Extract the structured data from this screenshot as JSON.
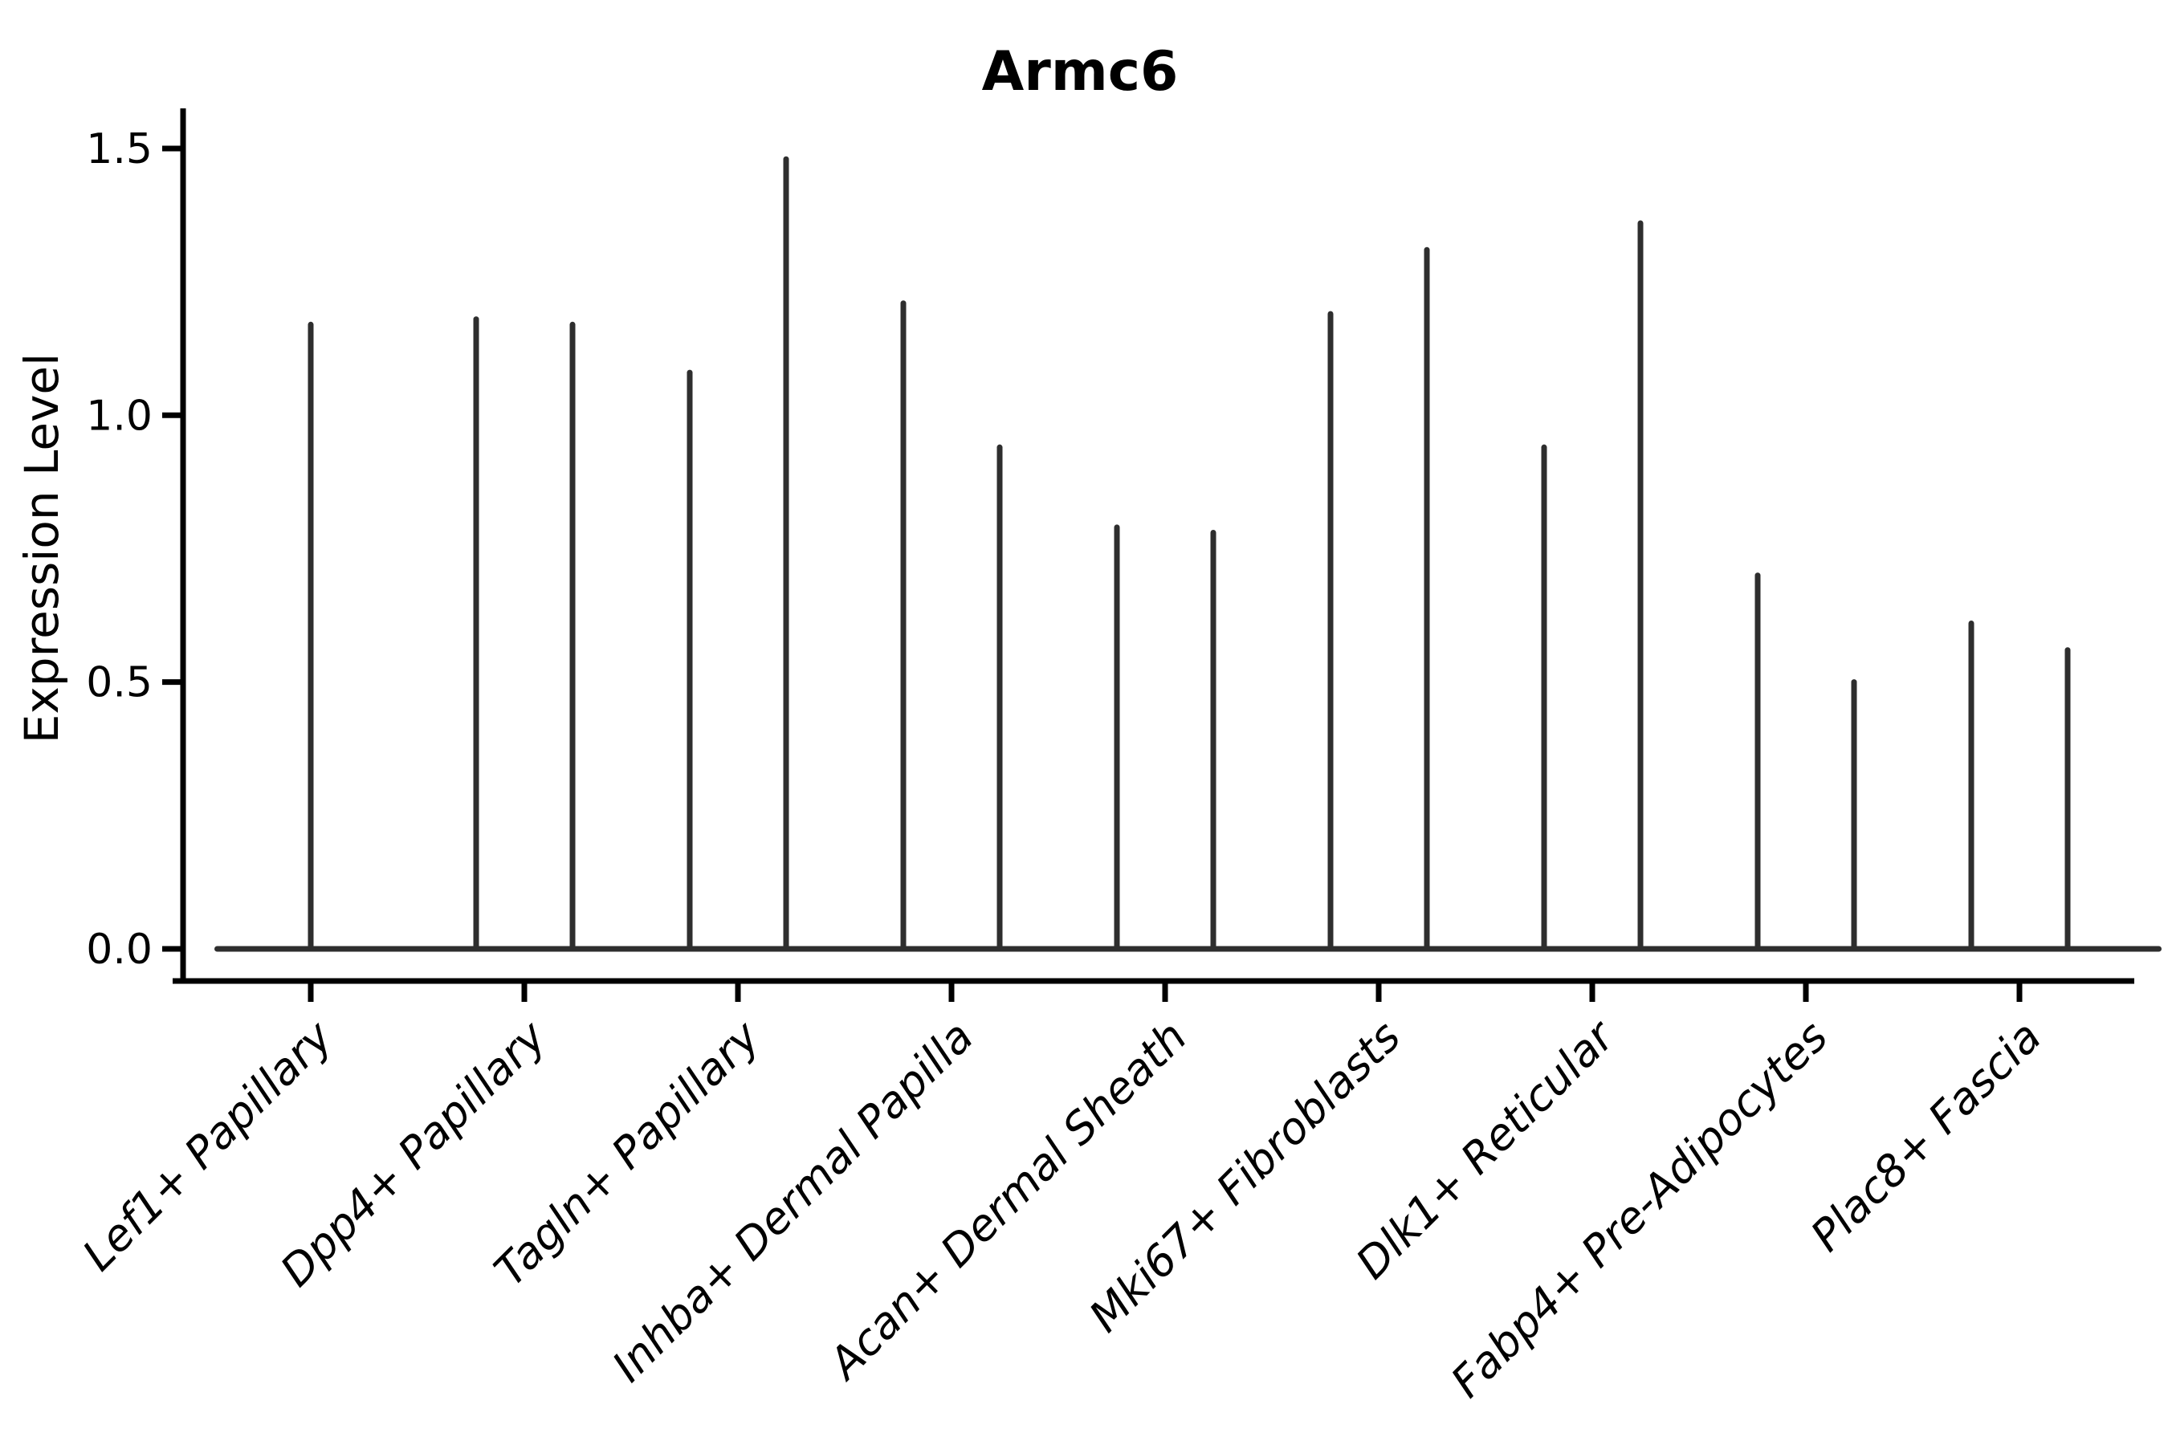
{
  "title": "Armc6",
  "ylabel": "Expression Level",
  "chart_data": {
    "type": "violin",
    "title": "Armc6",
    "xlabel": "",
    "ylabel": "Expression Level",
    "categories": [
      "Lef1+ Papillary",
      "Dpp4+ Papillary",
      "Tagln+ Papillary",
      "Inhba+ Dermal Papilla",
      "Acan+ Dermal Sheath",
      "Mki67+ Fibroblasts",
      "Dlk1+ Reticular",
      "Fabp4+ Pre-Adipocytes",
      "Plac8+ Fascia"
    ],
    "series": [
      {
        "category": "Lef1+ Papillary",
        "spike_maxima": [
          1.17
        ]
      },
      {
        "category": "Dpp4+ Papillary",
        "spike_maxima": [
          1.18,
          1.17
        ]
      },
      {
        "category": "Tagln+ Papillary",
        "spike_maxima": [
          1.08,
          1.48
        ]
      },
      {
        "category": "Inhba+ Dermal Papilla",
        "spike_maxima": [
          1.21,
          0.94
        ]
      },
      {
        "category": "Acan+ Dermal Sheath",
        "spike_maxima": [
          0.79,
          0.78
        ]
      },
      {
        "category": "Mki67+ Fibroblasts",
        "spike_maxima": [
          1.19,
          1.31
        ]
      },
      {
        "category": "Dlk1+ Reticular",
        "spike_maxima": [
          0.94,
          1.36
        ]
      },
      {
        "category": "Fabp4+ Pre-Adipocytes",
        "spike_maxima": [
          0.7,
          0.5
        ]
      },
      {
        "category": "Plac8+ Fascia",
        "spike_maxima": [
          0.61,
          0.56
        ]
      }
    ],
    "yticks": [
      "0.0",
      "0.5",
      "1.0",
      "1.5"
    ],
    "ytick_values": [
      0.0,
      0.5,
      1.0,
      1.5
    ],
    "ylim": [
      -0.06,
      1.58
    ],
    "grid": false,
    "legend": "none",
    "violin_shape_note": "each violin is a flat body at 0 expression with a thin vertical density spike at its center"
  },
  "colors": {
    "violin_stroke": "#2e2e2e",
    "axis": "#000000",
    "text": "#000000",
    "background": "#ffffff"
  }
}
